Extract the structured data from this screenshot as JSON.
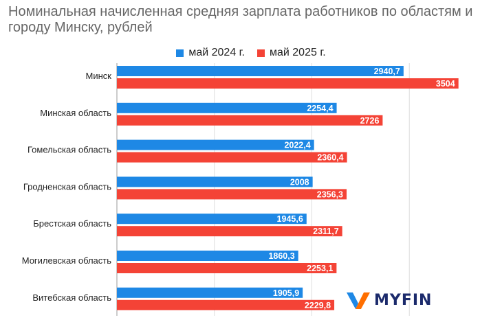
{
  "chart_data": {
    "type": "bar",
    "orientation": "horizontal",
    "title": "Номинальная начисленная средняя зарплата работников по областям и городу Минску, рублей",
    "categories": [
      "Минск",
      "Минская область",
      "Гомельская область",
      "Гродненская область",
      "Брестская область",
      "Могилевская область",
      "Витебская область"
    ],
    "series": [
      {
        "name": "май 2024 г.",
        "color": "#1e88e5",
        "values": [
          2940.7,
          2254.4,
          2022.4,
          2008,
          1945.6,
          1860.3,
          1905.9
        ],
        "labels": [
          "2940,7",
          "2254,4",
          "2022,4",
          "2008",
          "1945,6",
          "1860,3",
          "1905,9"
        ]
      },
      {
        "name": "май 2025 г.",
        "color": "#f44336",
        "values": [
          3504,
          2726,
          2360.4,
          2356.3,
          2311.7,
          2253.1,
          2229.8
        ],
        "labels": [
          "3504",
          "2726",
          "2360,4",
          "2356,3",
          "2311,7",
          "2253,1",
          "2229,8"
        ]
      }
    ],
    "xlim": [
      0,
      4000
    ],
    "grid": true,
    "legend_position": "top"
  },
  "branding": {
    "logo_text": "MYFIN",
    "logo_colors": [
      "#1e88e5",
      "#ff6f00",
      "#1b2a6b"
    ]
  }
}
